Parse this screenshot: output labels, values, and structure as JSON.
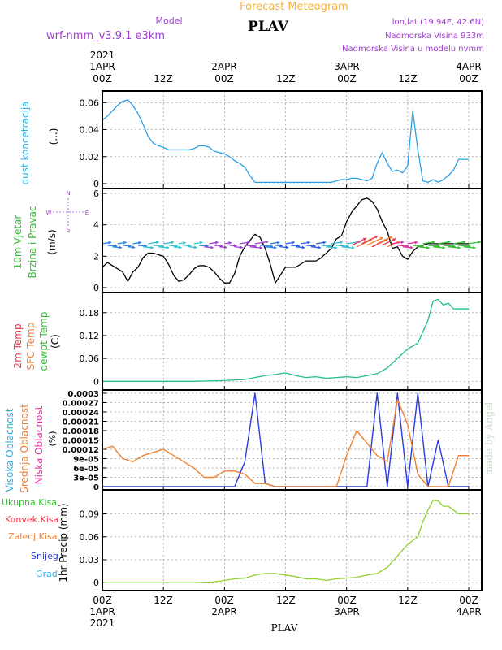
{
  "header": {
    "title": "Forecast Meteogram",
    "model_label": "Model",
    "model_name": "wrf-nmm_v3.9.1 e3km",
    "station": "PLAV",
    "coords": "lon,lat (19.94E, 42.6N)",
    "elevation": "Nadmorska Visina 933m",
    "model_elevation": "Nadmorska Visina u modelu nvmm"
  },
  "footer": {
    "station": "PLAV"
  },
  "watermark": "made by Angel",
  "time_axis": {
    "ticks": [
      "00Z",
      "12Z",
      "00Z",
      "12Z",
      "00Z",
      "12Z",
      "00Z"
    ],
    "date_labels": [
      "1APR",
      "2APR",
      "3APR",
      "4APR"
    ],
    "year": "2021"
  },
  "colors": {
    "dust": "#2aa0e8",
    "wind_speed": "#000000",
    "temp": "#22c08a",
    "cloud_high": "#2a3ce0",
    "cloud_mid": "#f08030",
    "precip": "#90d030",
    "label_green": "#30c030",
    "label_red": "#ee3040",
    "label_orange": "#f08030",
    "label_blue": "#3040e0",
    "label_cyan": "#30b0e0",
    "label_pink": "#e030a0",
    "label_purple": "#a040d0",
    "title_orange": "#f5b040"
  },
  "panels": {
    "dust": {
      "labels": [
        "dust koncetracija",
        "(...)"
      ]
    },
    "wind": {
      "labels": [
        "10m Vjetar",
        "Brzina i Pravac",
        "(m/s)"
      ],
      "compass": [
        "N",
        "S",
        "W",
        "E"
      ]
    },
    "temp": {
      "labels": [
        "2m Temp",
        "SFC Temp",
        "dewpt Temp",
        "(C)"
      ]
    },
    "cloud": {
      "labels": [
        "Visoka Oblacnost",
        "Srednja Oblacnost",
        "Niska Oblacnost",
        "(%)"
      ]
    },
    "precip": {
      "labels": [
        "Ukupna Kisa",
        "Konvek.Kisa",
        "Zaledj.Kisa",
        "Snijeg",
        "Grad",
        "1hr Precip (mm)"
      ]
    }
  },
  "chart_data": [
    {
      "type": "line",
      "name": "dust",
      "xlabel": "",
      "ylabel": "dust koncetracija (...)",
      "ylim": [
        0,
        0.065
      ],
      "yticks": [
        "0",
        "0.02",
        "0.04",
        "0.06"
      ],
      "x_hours": [
        0,
        1,
        2,
        3,
        4,
        5,
        6,
        7,
        8,
        9,
        10,
        11,
        12,
        13,
        14,
        15,
        16,
        17,
        18,
        19,
        20,
        21,
        22,
        23,
        24,
        25,
        26,
        27,
        28,
        29,
        30,
        31,
        32,
        33,
        34,
        35,
        36,
        37,
        38,
        39,
        40,
        41,
        42,
        43,
        44,
        45,
        46,
        47,
        48,
        49,
        50,
        51,
        52,
        53,
        54,
        55,
        56,
        57,
        58,
        59,
        60,
        61,
        62,
        63,
        64,
        65,
        66,
        67,
        68,
        69,
        70,
        71,
        72
      ],
      "series": [
        {
          "values": [
            0.047,
            0.05,
            0.054,
            0.058,
            0.061,
            0.062,
            0.058,
            0.052,
            0.044,
            0.035,
            0.03,
            0.028,
            0.027,
            0.025,
            0.025,
            0.025,
            0.025,
            0.025,
            0.026,
            0.028,
            0.028,
            0.027,
            0.024,
            0.023,
            0.022,
            0.02,
            0.017,
            0.015,
            0.012,
            0.006,
            0.001,
            0.001,
            0.001,
            0.001,
            0.001,
            0.001,
            0.001,
            0.001,
            0.001,
            0.001,
            0.001,
            0.001,
            0.001,
            0.001,
            0.001,
            0.001,
            0.002,
            0.003,
            0.003,
            0.004,
            0.004,
            0.003,
            0.002,
            0.004,
            0.015,
            0.023,
            0.015,
            0.009,
            0.01,
            0.008,
            0.013,
            0.054,
            0.025,
            0.002,
            0.001,
            0.003,
            0.001,
            0.003,
            0.006,
            0.01,
            0.018,
            0.018,
            0.018
          ]
        }
      ]
    },
    {
      "type": "line",
      "name": "wind",
      "ylabel": "10m Vjetar Brzina i Pravac (m/s)",
      "ylim": [
        0,
        6
      ],
      "yticks": [
        "0",
        "2",
        "4",
        "6"
      ],
      "x_hours": [
        0,
        1,
        2,
        3,
        4,
        5,
        6,
        7,
        8,
        9,
        10,
        11,
        12,
        13,
        14,
        15,
        16,
        17,
        18,
        19,
        20,
        21,
        22,
        23,
        24,
        25,
        26,
        27,
        28,
        29,
        30,
        31,
        32,
        33,
        34,
        35,
        36,
        37,
        38,
        39,
        40,
        41,
        42,
        43,
        44,
        45,
        46,
        47,
        48,
        49,
        50,
        51,
        52,
        53,
        54,
        55,
        56,
        57,
        58,
        59,
        60,
        61,
        62,
        63,
        64,
        65,
        66,
        67,
        68,
        69,
        70,
        71,
        72
      ],
      "series": [
        {
          "values": [
            1.3,
            1.6,
            1.4,
            1.2,
            1.0,
            0.4,
            1.0,
            1.3,
            1.9,
            2.2,
            2.2,
            2.1,
            2.0,
            1.5,
            0.8,
            0.4,
            0.5,
            0.8,
            1.2,
            1.4,
            1.4,
            1.3,
            1.0,
            0.6,
            0.3,
            0.3,
            0.9,
            2.0,
            2.6,
            3.0,
            3.4,
            3.2,
            2.5,
            1.5,
            0.3,
            0.8,
            1.3,
            1.3,
            1.3,
            1.5,
            1.7,
            1.7,
            1.7,
            1.9,
            2.2,
            2.5,
            3.1,
            3.3,
            4.2,
            4.8,
            5.2,
            5.6,
            5.7,
            5.5,
            5.0,
            4.2,
            3.6,
            2.5,
            2.6,
            2.0,
            1.8,
            2.3,
            2.6,
            2.7,
            2.8,
            2.8,
            2.8,
            2.8,
            2.8,
            2.8,
            2.8,
            2.8,
            2.8
          ]
        }
      ],
      "arrow_stride_hours": 1
    },
    {
      "type": "line",
      "name": "temperature",
      "ylabel": "2m Temp / SFC Temp / dewpt Temp (C)",
      "ylim": [
        -0.01,
        0.22
      ],
      "yticks": [
        "0",
        "0.06",
        "0.12",
        "0.18"
      ],
      "x_hours": [
        0,
        6,
        12,
        18,
        24,
        28,
        30,
        32,
        34,
        36,
        38,
        40,
        42,
        44,
        46,
        48,
        50,
        52,
        54,
        56,
        58,
        60,
        62,
        64,
        65,
        66,
        67,
        68,
        69,
        70,
        71,
        72
      ],
      "series": [
        {
          "values": [
            0,
            0,
            0,
            0,
            0.002,
            0.005,
            0.01,
            0.015,
            0.018,
            0.022,
            0.015,
            0.01,
            0.012,
            0.008,
            0.01,
            0.012,
            0.01,
            0.015,
            0.02,
            0.035,
            0.06,
            0.085,
            0.1,
            0.16,
            0.21,
            0.215,
            0.2,
            0.205,
            0.19,
            0.19,
            0.19,
            0.19
          ]
        }
      ]
    },
    {
      "type": "line",
      "name": "cloud",
      "ylabel": "Visoka / Srednja / Niska Oblacnost (%)",
      "ylim": [
        0,
        0.0003
      ],
      "yticks": [
        "0",
        "3e-05",
        "6e-05",
        "9e-05",
        "0.00012",
        "0.00015",
        "0.00018",
        "0.00021",
        "0.00024",
        "0.00027",
        "0.0003"
      ],
      "x_hours": [
        0,
        2,
        4,
        6,
        8,
        10,
        12,
        14,
        16,
        18,
        20,
        22,
        24,
        26,
        28,
        30,
        32,
        34,
        36,
        38,
        40,
        42,
        44,
        46,
        48,
        50,
        52,
        54,
        56,
        58,
        60,
        62,
        64,
        66,
        68,
        70,
        72
      ],
      "series": [
        {
          "values": [
            0,
            0,
            0,
            0,
            0,
            0,
            0,
            0,
            0,
            0,
            0,
            0,
            0,
            0,
            8e-05,
            0.0003,
            1e-05,
            0,
            0,
            0,
            0,
            0,
            0,
            0,
            0,
            0,
            0,
            0.0003,
            0,
            0.0003,
            0,
            0.0003,
            0,
            0.00015,
            0,
            0,
            0
          ]
        },
        {
          "values": [
            0.00012,
            0.00013,
            9e-05,
            8e-05,
            0.0001,
            0.00011,
            0.00012,
            0.0001,
            8e-05,
            6e-05,
            3e-05,
            3e-05,
            5e-05,
            5e-05,
            4e-05,
            1e-05,
            1e-05,
            0,
            0,
            0,
            0,
            0,
            0,
            0,
            0.0001,
            0.00018,
            0.00014,
            0.0001,
            8e-05,
            0.00028,
            0.0002,
            4e-05,
            0,
            0,
            0,
            0.0001,
            0.0001
          ]
        }
      ]
    },
    {
      "type": "line",
      "name": "precipitation",
      "ylabel": "1hr Precip (mm)",
      "ylim": [
        -0.004,
        0.115
      ],
      "yticks": [
        "0",
        "0.03",
        "0.06",
        "0.09"
      ],
      "x_hours": [
        0,
        6,
        12,
        18,
        22,
        24,
        26,
        28,
        30,
        32,
        34,
        36,
        38,
        40,
        42,
        44,
        46,
        48,
        50,
        52,
        54,
        56,
        58,
        60,
        62,
        63,
        64,
        65,
        66,
        67,
        68,
        69,
        70,
        71,
        72
      ],
      "series": [
        {
          "values": [
            0,
            0,
            0,
            0,
            0.001,
            0.003,
            0.005,
            0.006,
            0.01,
            0.012,
            0.012,
            0.01,
            0.008,
            0.005,
            0.005,
            0.003,
            0.005,
            0.006,
            0.007,
            0.01,
            0.012,
            0.02,
            0.035,
            0.05,
            0.06,
            0.08,
            0.095,
            0.108,
            0.107,
            0.1,
            0.1,
            0.095,
            0.09,
            0.09,
            0.09
          ]
        }
      ]
    }
  ]
}
